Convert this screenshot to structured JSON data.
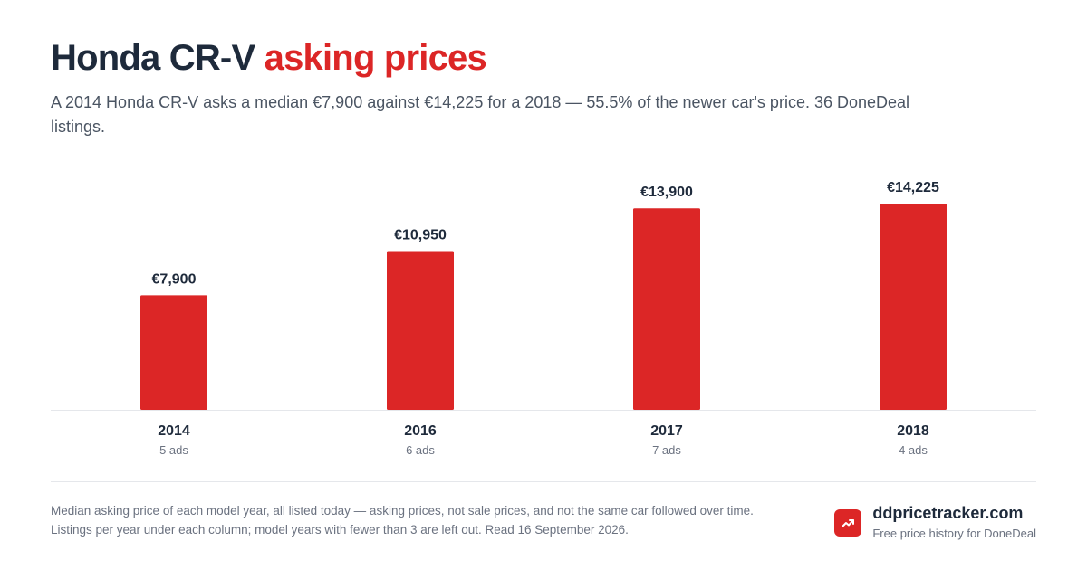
{
  "header": {
    "title_plain": "Honda CR-V",
    "title_accent": "asking prices",
    "subtitle": "A 2014 Honda CR-V asks a median €7,900 against €14,225 for a 2018 — 55.5% of the newer car's price. 36 DoneDeal listings."
  },
  "colors": {
    "bar": "#dc2626",
    "accent": "#dc2626",
    "text": "#1e2a3b",
    "muted": "#6b7280",
    "baseline": "#e5e7eb"
  },
  "chart_data": {
    "type": "bar",
    "categories": [
      "2014",
      "2016",
      "2017",
      "2018"
    ],
    "values": [
      7900,
      10950,
      13900,
      14225
    ],
    "value_labels": [
      "€7,900",
      "€10,950",
      "€13,900",
      "€14,225"
    ],
    "sublabels": [
      "5 ads",
      "6 ads",
      "7 ads",
      "4 ads"
    ],
    "ylim": [
      0,
      14225
    ],
    "grid": false,
    "legend": "none"
  },
  "footer": {
    "note": "Median asking price of each model year, all listed today — asking prices, not sale prices, and not the same car followed over time. Listings per year under each column; model years with fewer than 3 are left out. Read 16 September 2026.",
    "brand_name": "ddpricetracker.com",
    "brand_tagline": "Free price history for DoneDeal",
    "brand_icon": "trending-up-icon"
  }
}
